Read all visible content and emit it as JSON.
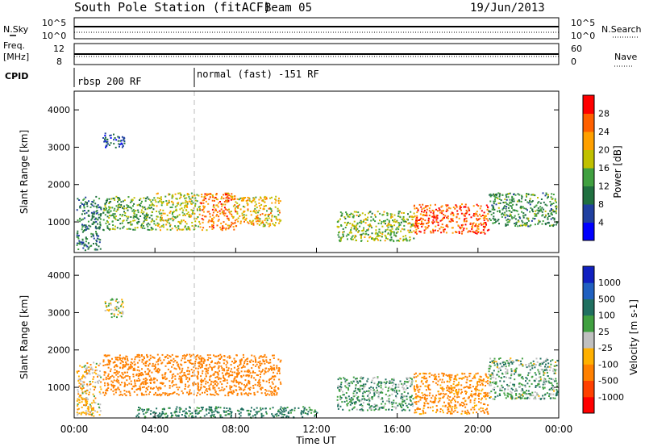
{
  "header": {
    "station": "South Pole Station (fitACF)",
    "beam": "Beam 05",
    "date": "19/Jun/2013"
  },
  "left_labels": {
    "nsky": "N.Sky",
    "freq_line1": "Freq.",
    "freq_line2": "[MHz]",
    "cpid": "CPID"
  },
  "right_labels": {
    "nsearch": "N.Search",
    "nave": "Nave"
  },
  "nsky_ticks": {
    "top": "10^5",
    "bottom": "10^0"
  },
  "freq_ticks": {
    "top": "12",
    "bottom": "8"
  },
  "nave_ticks": {
    "top": "60",
    "bottom": "0"
  },
  "cpid_modes": [
    {
      "label": "rbsp 200 RF",
      "start_hour": 0
    },
    {
      "label": "normal (fast) -151 RF",
      "start_hour": 6
    }
  ],
  "x_axis": {
    "label": "Time UT",
    "ticks": [
      "00:00",
      "04:00",
      "08:00",
      "12:00",
      "16:00",
      "20:00",
      "00:00"
    ]
  },
  "power_colorbar": {
    "label": "Power [dB]",
    "ticks": [
      "4",
      "8",
      "12",
      "16",
      "20",
      "24",
      "28"
    ],
    "colors": [
      "#0000ff",
      "#2040a0",
      "#207040",
      "#40a040",
      "#c0c000",
      "#ffa000",
      "#ff6000",
      "#ff0000"
    ]
  },
  "velocity_colorbar": {
    "label": "Velocity [m s-1]",
    "ticks": [
      "1000",
      "500",
      "100",
      "25",
      "-25",
      "-100",
      "-500",
      "-1000"
    ],
    "colors": [
      "#1020c0",
      "#2060c0",
      "#207060",
      "#40a040",
      "#c0c0c0",
      "#ffb000",
      "#ff8000",
      "#ff4000",
      "#ff0000"
    ]
  },
  "chart_data": [
    {
      "type": "heatmap",
      "title": "Power",
      "xlabel": "Time UT",
      "ylabel": "Slant Range [km]",
      "xlim_hours": [
        0,
        24
      ],
      "ylim_km": [
        180,
        4500
      ],
      "yticks": [
        1000,
        2000,
        3000,
        4000
      ],
      "scatter_bands": [
        {
          "t0": 0.1,
          "t1": 1.3,
          "r0": 250,
          "r1": 1700,
          "val": 10
        },
        {
          "t0": 1.4,
          "t1": 4.0,
          "r0": 800,
          "r1": 1700,
          "val": 14
        },
        {
          "t0": 4.0,
          "t1": 6.2,
          "r0": 800,
          "r1": 1800,
          "val": 18
        },
        {
          "t0": 6.2,
          "t1": 8.0,
          "r0": 800,
          "r1": 1800,
          "val": 24
        },
        {
          "t0": 8.0,
          "t1": 10.2,
          "r0": 900,
          "r1": 1700,
          "val": 20
        },
        {
          "t0": 1.4,
          "t1": 2.5,
          "r0": 3000,
          "r1": 3400,
          "val": 6
        },
        {
          "t0": 13.0,
          "t1": 16.8,
          "r0": 500,
          "r1": 1300,
          "val": 16
        },
        {
          "t0": 16.8,
          "t1": 20.5,
          "r0": 700,
          "r1": 1500,
          "val": 26
        },
        {
          "t0": 20.5,
          "t1": 23.9,
          "r0": 900,
          "r1": 1800,
          "val": 12
        }
      ]
    },
    {
      "type": "heatmap",
      "title": "Velocity",
      "xlabel": "Time UT",
      "ylabel": "Slant Range [km]",
      "xlim_hours": [
        0,
        24
      ],
      "ylim_km": [
        180,
        4500
      ],
      "yticks": [
        1000,
        2000,
        3000,
        4000
      ],
      "scatter_bands": [
        {
          "t0": 0.1,
          "t1": 1.3,
          "r0": 250,
          "r1": 1700,
          "val": -50
        },
        {
          "t0": 1.4,
          "t1": 6.2,
          "r0": 800,
          "r1": 1900,
          "val": -200
        },
        {
          "t0": 6.2,
          "t1": 10.2,
          "r0": 800,
          "r1": 1900,
          "val": -250
        },
        {
          "t0": 1.5,
          "t1": 2.4,
          "r0": 2900,
          "r1": 3400,
          "val": 0
        },
        {
          "t0": 13.0,
          "t1": 16.8,
          "r0": 400,
          "r1": 1300,
          "val": 80
        },
        {
          "t0": 16.8,
          "t1": 20.5,
          "r0": 300,
          "r1": 1400,
          "val": -150
        },
        {
          "t0": 20.5,
          "t1": 23.9,
          "r0": 700,
          "r1": 1800,
          "val": 60
        },
        {
          "t0": 3.0,
          "t1": 12.0,
          "r0": 200,
          "r1": 500,
          "val": 150
        }
      ]
    }
  ]
}
